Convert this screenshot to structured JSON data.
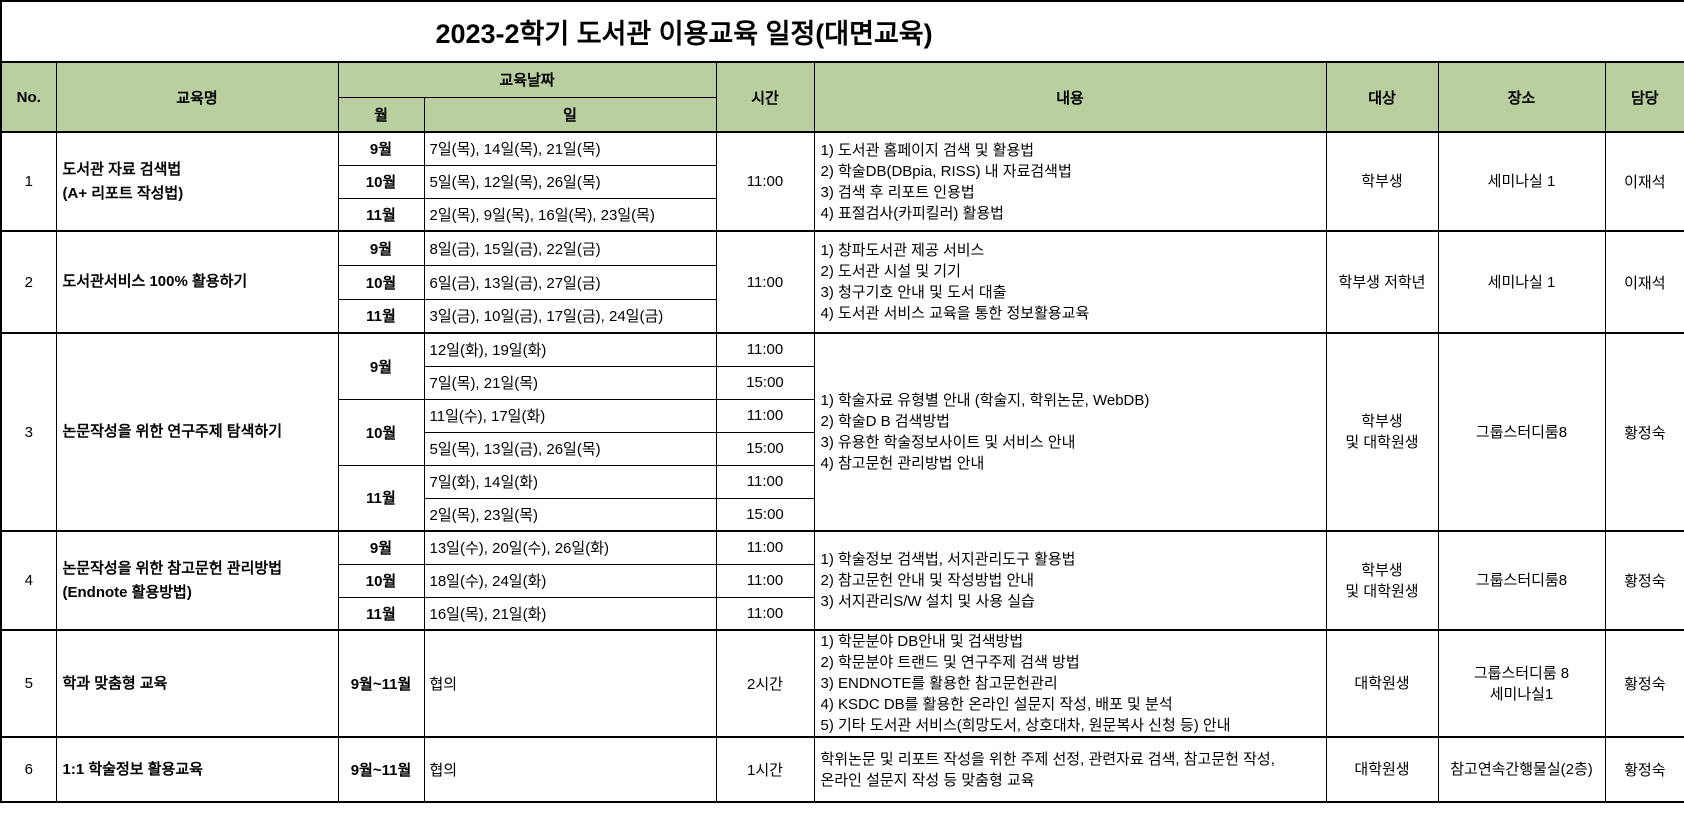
{
  "title": "2023-2학기 도서관 이용교육 일정(대면교육)",
  "columns": {
    "no": "No.",
    "name": "교육명",
    "date_group": "교육날짜",
    "month": "월",
    "day": "일",
    "time": "시간",
    "content": "내용",
    "target": "대상",
    "place": "장소",
    "manager": "담당"
  },
  "colors": {
    "header_bg": "#b9cf9f",
    "border": "#000000",
    "background": "#ffffff"
  },
  "rows": [
    {
      "no": "1",
      "name": [
        "도서관 자료 검색법",
        "(A+ 리포트 작성법)"
      ],
      "time_merged": "11:00",
      "schedule": [
        {
          "month": "9월",
          "slots": [
            {
              "days": "7일(목), 14일(목), 21일(목)"
            }
          ]
        },
        {
          "month": "10월",
          "slots": [
            {
              "days": "5일(목), 12일(목), 26일(목)"
            }
          ]
        },
        {
          "month": "11월",
          "slots": [
            {
              "days": "2일(목), 9일(목), 16일(목), 23일(목)"
            }
          ]
        }
      ],
      "content": [
        "1) 도서관 홈페이지 검색 및 활용법",
        "2) 학술DB(DBpia, RISS) 내 자료검색법",
        "3) 검색 후 리포트 인용법",
        "4) 표절검사(카피킬러) 활용법"
      ],
      "target": [
        "학부생"
      ],
      "place": [
        "세미나실 1"
      ],
      "manager": "이재석"
    },
    {
      "no": "2",
      "name": [
        "도서관서비스 100% 활용하기"
      ],
      "time_merged": "11:00",
      "schedule": [
        {
          "month": "9월",
          "slots": [
            {
              "days": "8일(금), 15일(금), 22일(금)"
            }
          ]
        },
        {
          "month": "10월",
          "slots": [
            {
              "days": "6일(금), 13일(금), 27일(금)"
            }
          ]
        },
        {
          "month": "11월",
          "slots": [
            {
              "days": "3일(금), 10일(금), 17일(금), 24일(금)"
            }
          ]
        }
      ],
      "content": [
        "1) 창파도서관 제공 서비스",
        "2) 도서관 시설 및 기기",
        "3) 청구기호 안내 및 도서 대출",
        "4) 도서관 서비스 교육을 통한 정보활용교육"
      ],
      "target": [
        "학부생 저학년"
      ],
      "place": [
        "세미나실 1"
      ],
      "manager": "이재석"
    },
    {
      "no": "3",
      "name": [
        "논문작성을 위한 연구주제 탐색하기"
      ],
      "time_merged": null,
      "schedule": [
        {
          "month": "9월",
          "slots": [
            {
              "days": "12일(화), 19일(화)",
              "time": "11:00"
            },
            {
              "days": "7일(목), 21일(목)",
              "time": "15:00"
            }
          ]
        },
        {
          "month": "10월",
          "slots": [
            {
              "days": "11일(수), 17일(화)",
              "time": "11:00"
            },
            {
              "days": "5일(목), 13일(금), 26일(목)",
              "time": "15:00"
            }
          ]
        },
        {
          "month": "11월",
          "slots": [
            {
              "days": "7일(화), 14일(화)",
              "time": "11:00"
            },
            {
              "days": "2일(목), 23일(목)",
              "time": "15:00"
            }
          ]
        }
      ],
      "content": [
        "1) 학술자료 유형별 안내 (학술지, 학위논문, WebDB)",
        "2) 학술D B 검색방법",
        "3) 유용한 학술정보사이트 및 서비스 안내",
        "4) 참고문헌 관리방법 안내"
      ],
      "target": [
        "학부생",
        "및 대학원생"
      ],
      "place": [
        "그룹스터디룸8"
      ],
      "manager": "황정숙"
    },
    {
      "no": "4",
      "name": [
        "논문작성을 위한 참고문헌 관리방법",
        "(Endnote 활용방법)"
      ],
      "time_merged": null,
      "schedule": [
        {
          "month": "9월",
          "slots": [
            {
              "days": "13일(수), 20일(수), 26일(화)",
              "time": "11:00"
            }
          ]
        },
        {
          "month": "10월",
          "slots": [
            {
              "days": "18일(수), 24일(화)",
              "time": "11:00"
            }
          ]
        },
        {
          "month": "11월",
          "slots": [
            {
              "days": "16일(목), 21일(화)",
              "time": "11:00"
            }
          ]
        }
      ],
      "content": [
        "1) 학술정보 검색법, 서지관리도구 활용법",
        "2) 참고문헌 안내 및 작성방법 안내",
        "3) 서지관리S/W 설치 및 사용 실습"
      ],
      "target": [
        "학부생",
        "및 대학원생"
      ],
      "place": [
        "그룹스터디룸8"
      ],
      "manager": "황정숙"
    },
    {
      "no": "5",
      "name": [
        "학과 맞춤형 교육"
      ],
      "time_merged": "2시간",
      "schedule": [
        {
          "month": "9월~11월",
          "slots": [
            {
              "days": "협의"
            }
          ]
        }
      ],
      "content": [
        "1) 학문분야 DB안내 및 검색방법",
        "2) 학문분야 트랜드 및 연구주제 검색 방법",
        "3) ENDNOTE를 활용한 참고문헌관리",
        "4) KSDC DB를 활용한 온라인 설문지 작성, 배포 및 분석",
        "5) 기타 도서관 서비스(희망도서, 상호대차, 원문복사 신청 등) 안내"
      ],
      "target": [
        "대학원생"
      ],
      "place": [
        "그룹스터디룸 8",
        "세미나실1"
      ],
      "manager": "황정숙"
    },
    {
      "no": "6",
      "name": [
        "1:1 학술정보 활용교육"
      ],
      "time_merged": "1시간",
      "schedule": [
        {
          "month": "9월~11월",
          "slots": [
            {
              "days": "협의"
            }
          ]
        }
      ],
      "content": [
        "학위논문 및 리포트 작성을 위한 주제 선정, 관련자료 검색, 참고문헌 작성,",
        "온라인 설문지 작성 등 맞춤형 교육"
      ],
      "target": [
        "대학원생"
      ],
      "place": [
        "참고연속간행물실(2층)"
      ],
      "manager": "황정숙"
    }
  ]
}
